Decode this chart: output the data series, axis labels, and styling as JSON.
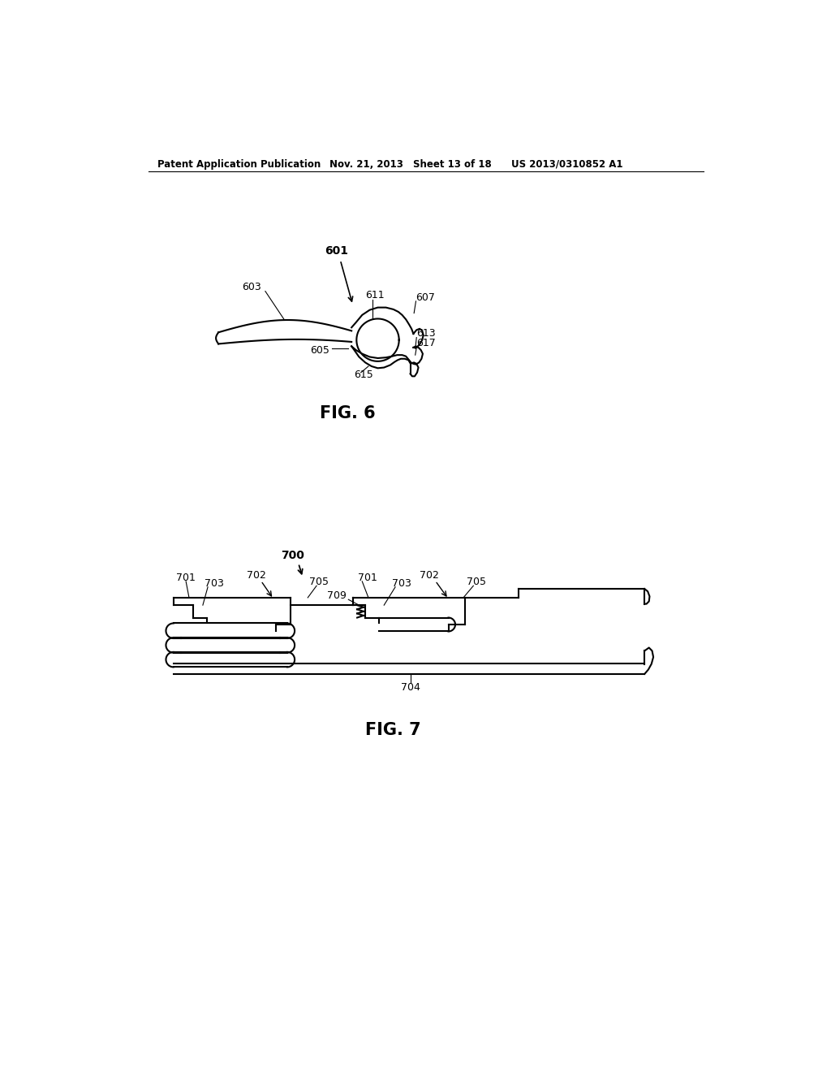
{
  "background_color": "#ffffff",
  "header_text": "Patent Application Publication",
  "header_date": "Nov. 21, 2013",
  "header_sheet": "Sheet 13 of 18",
  "header_patent": "US 2013/0310852 A1",
  "fig6_label": "FIG. 6",
  "fig7_label": "FIG. 7",
  "line_color": "#000000",
  "lw": 1.5,
  "lw_thin": 0.8,
  "label_fs": 9,
  "bold_label_fs": 10,
  "fig_label_fs": 15,
  "header_fs": 8.5
}
